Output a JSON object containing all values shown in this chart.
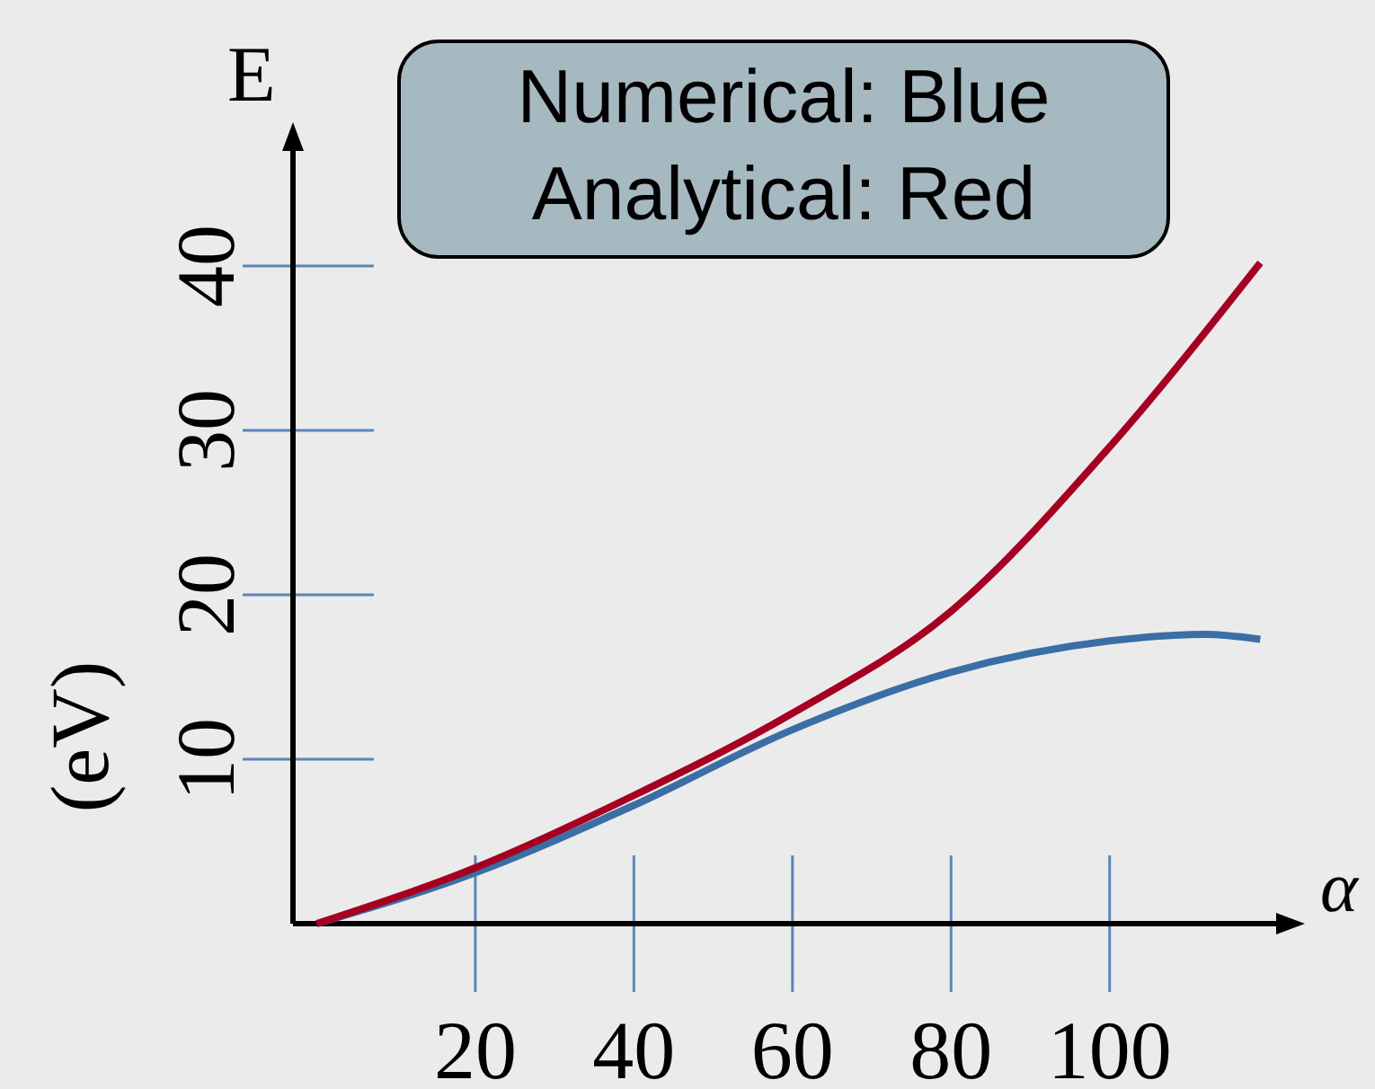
{
  "chart_data": {
    "type": "line",
    "ylabel": "E",
    "xlabel": "α",
    "annotations": [
      "(eV)",
      "Numerical: Blue",
      "Analytical: Red"
    ],
    "xlim": [
      -3,
      121
    ],
    "xticks": [
      20,
      40,
      60,
      80,
      100
    ],
    "ylim": [
      0,
      47
    ],
    "yticks": [
      10,
      20,
      30,
      40
    ],
    "series": [
      {
        "color": "#3a6ea5",
        "x": [
          0,
          20,
          40,
          60,
          80,
          100,
          112,
          119
        ],
        "values": [
          0,
          3.1,
          7.2,
          11.8,
          15.3,
          17.2,
          17.6,
          17.3
        ]
      },
      {
        "color": "#a50021",
        "x": [
          0,
          20,
          40,
          60,
          80,
          100,
          119
        ],
        "values": [
          0,
          3.4,
          7.8,
          12.8,
          19,
          29,
          40.2
        ]
      }
    ],
    "grid": false,
    "line_style": "solid"
  }
}
